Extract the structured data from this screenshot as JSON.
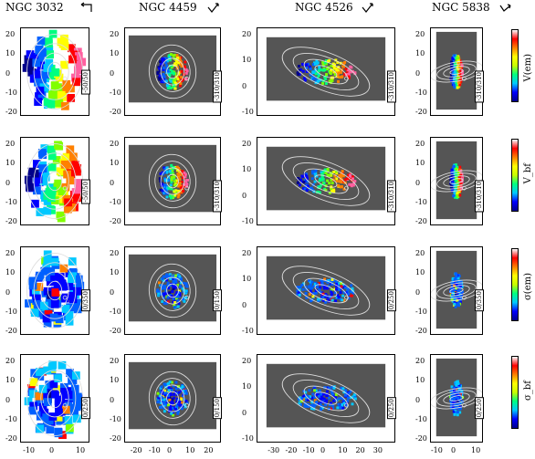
{
  "columns": [
    {
      "title": "NGC 3032"
    },
    {
      "title": "NGC 4459"
    },
    {
      "title": "NGC 4526"
    },
    {
      "title": "NGC 5838"
    }
  ],
  "rows": [
    {
      "label": "V(em)"
    },
    {
      "label": "V_bf"
    },
    {
      "label": "σ(em)"
    },
    {
      "label": "σ_bf"
    }
  ],
  "ranges": [
    [
      "-50/50",
      "-310/310",
      "-310/310",
      "-310/310"
    ],
    [
      "-50/50",
      "-310/310",
      "-310/310",
      "-310/310"
    ],
    [
      "0/350",
      "0/150",
      "0/250",
      "0/350"
    ],
    [
      "0/250",
      "0/150",
      "0/250",
      "0/250"
    ]
  ],
  "y_ticks_col0": [
    "20",
    "10",
    "0",
    "-10",
    "-20"
  ],
  "y_ticks_col1": [
    "20",
    "10",
    "0",
    "-10",
    "-20"
  ],
  "y_ticks_col2": [
    "20",
    "10",
    "0",
    "-10"
  ],
  "y_ticks_col3": [
    "20",
    "10",
    "0",
    "-10",
    "-20"
  ],
  "x_ticks_col0": [
    "-10",
    "0",
    "10"
  ],
  "x_ticks_col1": [
    "-20",
    "-10",
    "0",
    "10",
    "20"
  ],
  "x_ticks_col2": [
    "-30",
    "-20",
    "-10",
    "0",
    "10",
    "20",
    "30"
  ],
  "x_ticks_col3": [
    "-10",
    "0",
    "10"
  ]
}
